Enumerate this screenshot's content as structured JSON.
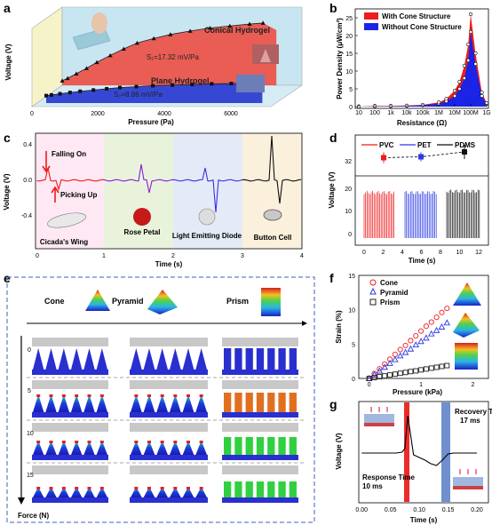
{
  "figure": {
    "panel_labels": [
      "a",
      "b",
      "c",
      "d",
      "e",
      "f",
      "g"
    ]
  },
  "panel_a": {
    "ylabel": "Voltage (V)",
    "xlabel": "Pressure (Pa)",
    "xticks": [
      "0",
      "2000",
      "4000",
      "6000"
    ],
    "series": [
      {
        "name": "Conical Hydrogel",
        "slope_label": "S₁=17.32 mV/Pa",
        "color": "#e8302a"
      },
      {
        "name": "Plane Hydrogel",
        "slope_label": "S₂=8.86 mV/Pa",
        "color": "#2230c8"
      }
    ]
  },
  "panel_b": {
    "ylabel": "Power Density (μW/cm²)",
    "xlabel": "Resistance (Ω)",
    "xticks": [
      "10",
      "100",
      "1k",
      "10k",
      "100k",
      "1M",
      "10M",
      "100M",
      "1G"
    ],
    "yticks": [
      "0",
      "5",
      "10",
      "15",
      "20",
      "25"
    ],
    "legend": [
      "With Cone Structure",
      "Without Cone Structure"
    ],
    "colors": {
      "with": "#ee1c1c",
      "without": "#1a23e6"
    }
  },
  "panel_c": {
    "ylabel": "Voltage (V)",
    "xlabel": "Time (s)",
    "yticks": [
      "0.4",
      "0.0",
      "-0.4"
    ],
    "xticks": [
      "0",
      "1",
      "2",
      "3",
      "4"
    ],
    "annotations": {
      "falling": "Falling On",
      "picking": "Picking Up"
    },
    "objects": [
      "Cicada's Wing",
      "Rose Petal",
      "Light Emitting Diode",
      "Button Cell"
    ],
    "colors": [
      "#ee1c1c",
      "#8a1fd6",
      "#3b2fe6",
      "#111111"
    ]
  },
  "panel_d": {
    "ylabel": "Voltage (V)",
    "xlabel": "Time (s)",
    "legend": [
      "PVC",
      "PET",
      "PDMS"
    ],
    "legend_colors": [
      "#ee1c1c",
      "#2b3be6",
      "#111111"
    ],
    "ytick_top": "32",
    "yticks": [
      "20",
      "10",
      "0"
    ],
    "xticks": [
      "0",
      "2",
      "4",
      "6",
      "8",
      "10",
      "12"
    ]
  },
  "panel_e": {
    "shapes": [
      "Cone",
      "Pyramid",
      "Prism"
    ],
    "forces": [
      "0",
      "5",
      "10",
      "15"
    ],
    "axis_label": "Force (N)"
  },
  "panel_f": {
    "ylabel": "Strain (%)",
    "xlabel": "Pressure (kPa)",
    "yticks": [
      "0",
      "5",
      "10",
      "15"
    ],
    "xticks": [
      "0",
      "1",
      "2"
    ],
    "legend": [
      "Cone",
      "Pyramid",
      "Prism"
    ],
    "colors": [
      "#ee1c1c",
      "#2b3be6",
      "#222222"
    ]
  },
  "panel_g": {
    "ylabel": "Voltage (V)",
    "xlabel": "Time (s)",
    "xticks": [
      "0.00",
      "0.05",
      "0.10",
      "0.15",
      "0.20"
    ],
    "recovery": "Recovery Time",
    "recovery_val": "17 ms",
    "response": "Response Time",
    "response_val": "10 ms"
  },
  "chart_data": [
    {
      "type": "line",
      "panel": "a",
      "xlabel": "Pressure (Pa)",
      "ylabel": "Voltage (V)",
      "series": [
        {
          "name": "Conical Hydrogel",
          "x": [
            0,
            150,
            400,
            700,
            1000,
            1400,
            1800,
            2200,
            2700,
            3200,
            3800,
            4400,
            5000,
            5600,
            6000
          ],
          "values": [
            0.2,
            0.7,
            1.6,
            2.7,
            3.9,
            5.3,
            6.6,
            7.8,
            8.7,
            9.5,
            10.2,
            10.8,
            11.2,
            11.6,
            11.8
          ]
        },
        {
          "name": "Plane Hydrogel",
          "x": [
            0,
            150,
            400,
            700,
            1000,
            1400,
            1800,
            2200,
            2700,
            3200,
            3800,
            4400,
            5000,
            5600,
            6000
          ],
          "values": [
            0.1,
            0.3,
            0.7,
            1.1,
            1.5,
            1.9,
            2.3,
            2.7,
            3.0,
            3.3,
            3.5,
            3.7,
            3.9,
            4.0,
            4.1
          ]
        }
      ]
    },
    {
      "type": "area",
      "panel": "b",
      "xlabel": "Resistance (Ω)",
      "ylabel": "Power Density (μW/cm²)",
      "x_scale": "log",
      "ylim": [
        0,
        27
      ],
      "x": [
        10,
        100,
        1000,
        10000,
        100000,
        1000000,
        3000000,
        10000000,
        20000000,
        40000000,
        70000000,
        100000000,
        200000000,
        500000000,
        1000000000
      ],
      "series": [
        {
          "name": "With Cone Structure",
          "values": [
            0,
            0.2,
            0.2,
            0.3,
            0.5,
            1.2,
            2.2,
            4.5,
            7.0,
            11.5,
            17.5,
            26.0,
            15.0,
            4.0,
            1.0
          ]
        },
        {
          "name": "Without Cone Structure",
          "values": [
            0,
            0.1,
            0.1,
            0.2,
            0.4,
            0.8,
            1.5,
            3.0,
            5.0,
            8.0,
            13.0,
            21.0,
            12.0,
            3.0,
            0.7
          ]
        }
      ]
    },
    {
      "type": "line",
      "panel": "d",
      "xlabel": "Time (s)",
      "ylabel": "Voltage (V)",
      "categories": [
        "PVC",
        "PET",
        "PDMS"
      ],
      "values": [
        32.5,
        32.7,
        33.8
      ],
      "errors": [
        1.2,
        1.0,
        1.6
      ]
    },
    {
      "type": "scatter",
      "panel": "f",
      "xlabel": "Pressure (kPa)",
      "ylabel": "Strain (%)",
      "ylim": [
        0,
        15
      ],
      "xlim": [
        -0.2,
        2.3
      ],
      "series": [
        {
          "name": "Cone",
          "x": [
            0,
            0.1,
            0.2,
            0.3,
            0.4,
            0.5,
            0.6,
            0.7,
            0.8,
            0.9,
            1.0,
            1.1,
            1.2,
            1.3,
            1.4,
            1.5
          ],
          "values": [
            0,
            0.7,
            1.4,
            2.1,
            2.8,
            3.5,
            4.2,
            4.8,
            5.5,
            6.2,
            6.9,
            7.6,
            8.2,
            8.9,
            9.6,
            10.2
          ]
        },
        {
          "name": "Pyramid",
          "x": [
            0,
            0.1,
            0.2,
            0.3,
            0.4,
            0.5,
            0.6,
            0.7,
            0.8,
            0.9,
            1.0,
            1.1,
            1.2,
            1.3,
            1.4,
            1.5
          ],
          "values": [
            0,
            0.55,
            1.1,
            1.65,
            2.2,
            2.75,
            3.3,
            3.8,
            4.3,
            4.9,
            5.4,
            5.9,
            6.5,
            7.0,
            7.5,
            8.1
          ]
        },
        {
          "name": "Prism",
          "x": [
            0,
            0.1,
            0.2,
            0.3,
            0.4,
            0.5,
            0.6,
            0.7,
            0.8,
            0.9,
            1.0,
            1.1,
            1.2,
            1.3,
            1.4,
            1.5
          ],
          "values": [
            0,
            0.12,
            0.25,
            0.37,
            0.5,
            0.62,
            0.75,
            0.87,
            1.0,
            1.1,
            1.25,
            1.37,
            1.5,
            1.62,
            1.75,
            1.87
          ]
        }
      ]
    }
  ]
}
